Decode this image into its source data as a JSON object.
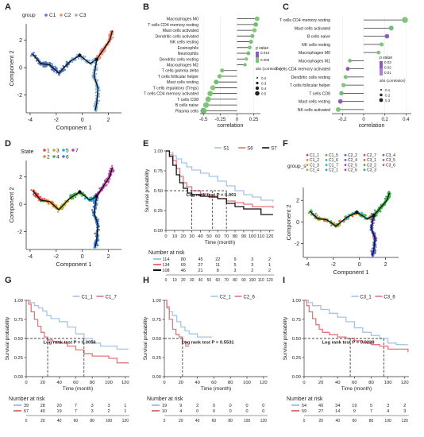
{
  "panels": [
    "A",
    "B",
    "C",
    "D",
    "E",
    "F",
    "G",
    "H",
    "I"
  ],
  "chart_data": [
    {
      "panel": "A",
      "type": "scatter",
      "legend_title": "group",
      "legend": [
        "C1",
        "C2",
        "C3"
      ],
      "colors": [
        "#4e79c4",
        "#f08a70",
        "#7fb3e0"
      ],
      "xlabel": "Component 1",
      "ylabel": "Component 2",
      "xticks": [
        -4,
        -2,
        0,
        2
      ],
      "yticks": [
        -2,
        0,
        2
      ],
      "xlim": [
        -4.3,
        3
      ],
      "ylim": [
        -3.3,
        3.2
      ]
    },
    {
      "panel": "B",
      "type": "lollipop",
      "xlabel": "correlation",
      "xticks": [
        -0.5,
        -0.25,
        0,
        0.25
      ],
      "xlim": [
        -0.55,
        0.35
      ],
      "legend_p_title": "p value",
      "legend_p_values": [
        "0.010",
        "0.005"
      ],
      "legend_abs_title": "abs (correlation)",
      "legend_abs_values": [
        "0.2",
        "0.3",
        "0.4",
        "0.5"
      ],
      "categories": [
        "Macrophages M0",
        "T cells CD4 memory resting",
        "Mast cells activated",
        "Dendritic cells activated",
        "NK cells resting",
        "Eosinophils",
        "Neutrophils",
        "Dendritic cells resting",
        "Macrophages M2",
        "T cells gamma delta",
        "T cells follicular helper",
        "Mast cells resting",
        "T cells regulatory (Tregs)",
        "T cells CD4 memory activated",
        "T cells CD8",
        "B cells naive",
        "Plasma cells"
      ],
      "values": [
        0.3,
        0.28,
        0.26,
        0.23,
        0.21,
        0.19,
        0.17,
        0.14,
        0.12,
        -0.22,
        -0.26,
        -0.31,
        -0.36,
        -0.4,
        -0.43,
        -0.46,
        -0.5
      ]
    },
    {
      "panel": "C",
      "type": "lollipop",
      "xlabel": "correlation",
      "xticks": [
        -0.2,
        0,
        0.2,
        0.4
      ],
      "xlim": [
        -0.3,
        0.45
      ],
      "legend_p_title": "p value",
      "legend_p_values": [
        "0.03",
        "0.02",
        "0.01"
      ],
      "legend_abs_title": "abs (correlation)",
      "legend_abs_values": [
        "0.1",
        "0.2",
        "0.3"
      ],
      "categories": [
        "T cells CD4 memory resting",
        "Mast cells activated",
        "B cells naive",
        "NK cells resting",
        "Macrophages M0",
        "Macrophages M1",
        "T cells CD4 memory activated",
        "Dendritic cells resting",
        "T cells follicular helper",
        "T cells CD8",
        "Mast cells resting",
        "NK cells activated"
      ],
      "values": [
        0.39,
        0.26,
        0.22,
        0.17,
        0.14,
        -0.13,
        -0.15,
        -0.17,
        -0.19,
        -0.21,
        -0.22,
        -0.24
      ]
    },
    {
      "panel": "D",
      "type": "scatter",
      "legend_title": "State",
      "legend": [
        "1",
        "2",
        "3",
        "4",
        "5",
        "6",
        "7"
      ],
      "colors": [
        "#e84a3c",
        "#e08a2c",
        "#b8b020",
        "#43b04a",
        "#25b4c0",
        "#3b7fd9",
        "#c040b0"
      ],
      "xlabel": "Component 1",
      "ylabel": "Component 2",
      "xticks": [
        -4,
        -2,
        0,
        2
      ],
      "yticks": [
        -2,
        0,
        2
      ]
    },
    {
      "panel": "E",
      "type": "line",
      "series": [
        {
          "name": "S1"
        },
        {
          "name": "S6"
        },
        {
          "name": "S7"
        }
      ],
      "colors": [
        "#a7c4e2",
        "#e3757a",
        "#111111"
      ],
      "curves": [
        [
          [
            0,
            1
          ],
          [
            4,
            0.98
          ],
          [
            8,
            0.94
          ],
          [
            12,
            0.9
          ],
          [
            18,
            0.85
          ],
          [
            24,
            0.8
          ],
          [
            30,
            0.76
          ],
          [
            40,
            0.72
          ],
          [
            50,
            0.68
          ],
          [
            60,
            0.62
          ],
          [
            70,
            0.56
          ],
          [
            80,
            0.5
          ],
          [
            90,
            0.45
          ],
          [
            100,
            0.42
          ],
          [
            110,
            0.38
          ],
          [
            124,
            0.36
          ]
        ],
        [
          [
            0,
            1
          ],
          [
            4,
            0.95
          ],
          [
            8,
            0.88
          ],
          [
            12,
            0.78
          ],
          [
            16,
            0.68
          ],
          [
            20,
            0.6
          ],
          [
            24,
            0.55
          ],
          [
            30,
            0.5
          ],
          [
            40,
            0.46
          ],
          [
            50,
            0.43
          ],
          [
            60,
            0.4
          ],
          [
            70,
            0.37
          ],
          [
            80,
            0.35
          ],
          [
            90,
            0.33
          ],
          [
            100,
            0.3
          ],
          [
            124,
            0.28
          ]
        ],
        [
          [
            0,
            1
          ],
          [
            4,
            0.93
          ],
          [
            8,
            0.82
          ],
          [
            12,
            0.7
          ],
          [
            16,
            0.6
          ],
          [
            20,
            0.53
          ],
          [
            25,
            0.47
          ],
          [
            30,
            0.45
          ],
          [
            40,
            0.43
          ],
          [
            50,
            0.42
          ],
          [
            60,
            0.4
          ],
          [
            70,
            0.34
          ],
          [
            80,
            0.3
          ],
          [
            90,
            0.27
          ],
          [
            100,
            0.27
          ],
          [
            110,
            0.2
          ],
          [
            124,
            0.2
          ]
        ]
      ],
      "dashed_h": 0.5,
      "dashed_v": [
        30,
        54,
        70
      ],
      "annotation": "Log rank test P < 0.001",
      "xlabel": "Time (month)",
      "ylabel": "Survival probability",
      "xticks": [
        0,
        10,
        20,
        30,
        40,
        50,
        60,
        70,
        80,
        90,
        100,
        110,
        120
      ],
      "yticks": [
        0,
        0.25,
        0.5,
        0.75,
        1
      ],
      "ytick_labels": [
        "0.00",
        "0.25",
        "0.50",
        "0.75",
        "1.00"
      ],
      "risk_title": "Number at risk",
      "risk": [
        [
          114,
          80,
          45,
          22,
          9,
          3,
          2
        ],
        [
          134,
          69,
          27,
          11,
          5,
          3,
          1
        ],
        [
          108,
          46,
          21,
          8,
          3,
          2,
          2
        ]
      ],
      "risk_x": [
        0,
        20,
        40,
        60,
        80,
        100,
        120
      ]
    },
    {
      "panel": "F",
      "type": "scatter",
      "legend_title": "group_s",
      "legend": [
        "C1_1",
        "C1_2",
        "C1_3",
        "C1_4",
        "C1_5",
        "C1_6",
        "C1_7",
        "C2_1",
        "C2_2",
        "C2_4",
        "C2_5",
        "C2_6",
        "C2_7",
        "C3_1",
        "C3_2",
        "C3_3",
        "C3_4",
        "C3_5",
        "C3_6"
      ],
      "xlabel": "Component 1",
      "ylabel": "Component 2",
      "xticks": [
        -4,
        -2,
        0,
        2
      ],
      "yticks": [
        -2,
        0,
        2
      ]
    },
    {
      "panel": "G",
      "type": "line",
      "series": [
        {
          "name": "C1_1"
        },
        {
          "name": "C1_7"
        }
      ],
      "colors": [
        "#a7c4e2",
        "#e3757a"
      ],
      "curves": [
        [
          [
            0,
            1
          ],
          [
            5,
            0.97
          ],
          [
            10,
            0.93
          ],
          [
            15,
            0.9
          ],
          [
            20,
            0.86
          ],
          [
            25,
            0.8
          ],
          [
            30,
            0.76
          ],
          [
            40,
            0.72
          ],
          [
            50,
            0.65
          ],
          [
            60,
            0.56
          ],
          [
            70,
            0.5
          ],
          [
            80,
            0.44
          ],
          [
            90,
            0.4
          ],
          [
            100,
            0.4
          ],
          [
            110,
            0.36
          ],
          [
            124,
            0.36
          ]
        ],
        [
          [
            0,
            1
          ],
          [
            3,
            0.95
          ],
          [
            6,
            0.85
          ],
          [
            10,
            0.75
          ],
          [
            14,
            0.66
          ],
          [
            18,
            0.58
          ],
          [
            22,
            0.52
          ],
          [
            26,
            0.48
          ],
          [
            32,
            0.46
          ],
          [
            40,
            0.44
          ],
          [
            50,
            0.4
          ],
          [
            60,
            0.35
          ],
          [
            70,
            0.3
          ],
          [
            80,
            0.27
          ],
          [
            100,
            0.24
          ],
          [
            110,
            0.18
          ],
          [
            124,
            0.18
          ]
        ]
      ],
      "dashed_h": 0.5,
      "dashed_v": [
        26,
        70
      ],
      "annotation": "Log rank test P = 0.0056",
      "xlabel": "Time (month)",
      "ylabel": "Survival probability",
      "xticks": [
        0,
        20,
        40,
        60,
        80,
        100,
        120
      ],
      "yticks": [
        0,
        0.25,
        0.5,
        0.75,
        1
      ],
      "ytick_labels": [
        "0.00",
        "0.25",
        "0.50",
        "0.75",
        "1.00"
      ],
      "risk_title": "Number at risk",
      "risk": [
        [
          39,
          28,
          20,
          7,
          3,
          3,
          1
        ],
        [
          67,
          40,
          19,
          7,
          3,
          2,
          1
        ]
      ],
      "risk_x": [
        0,
        20,
        40,
        60,
        80,
        100,
        120
      ]
    },
    {
      "panel": "H",
      "type": "line",
      "series": [
        {
          "name": "C2_1"
        },
        {
          "name": "C2_6"
        }
      ],
      "colors": [
        "#a7c4e2",
        "#e3757a"
      ],
      "curves": [
        [
          [
            0,
            1
          ],
          [
            3,
            0.92
          ],
          [
            6,
            0.85
          ],
          [
            10,
            0.8
          ],
          [
            15,
            0.72
          ],
          [
            20,
            0.65
          ],
          [
            25,
            0.6
          ],
          [
            30,
            0.56
          ],
          [
            40,
            0.52
          ],
          [
            50,
            0.52
          ],
          [
            58,
            0.52
          ]
        ],
        [
          [
            0,
            1
          ],
          [
            3,
            0.9
          ],
          [
            6,
            0.75
          ],
          [
            10,
            0.62
          ],
          [
            14,
            0.55
          ],
          [
            18,
            0.52
          ],
          [
            22,
            0.46
          ],
          [
            26,
            0.4
          ],
          [
            30,
            0.4
          ]
        ]
      ],
      "dashed_h": 0.5,
      "dashed_v": [
        22
      ],
      "annotation": "Log rank test P = 0.5531",
      "xlabel": "Time (month)",
      "ylabel": "Survival probability",
      "xticks": [
        0,
        20,
        40,
        60,
        80,
        100,
        120
      ],
      "yticks": [
        0,
        0.25,
        0.5,
        0.75,
        1
      ],
      "ytick_labels": [
        "0.00",
        "0.25",
        "0.50",
        "0.75",
        "1.00"
      ],
      "risk_title": "Number at risk",
      "risk": [
        [
          19,
          9,
          2,
          0,
          0,
          0,
          0
        ],
        [
          10,
          4,
          0,
          0,
          0,
          0,
          0
        ]
      ],
      "risk_x": [
        0,
        20,
        40,
        60,
        80,
        100,
        120
      ]
    },
    {
      "panel": "I",
      "type": "line",
      "series": [
        {
          "name": "C3_1"
        },
        {
          "name": "C3_6"
        }
      ],
      "colors": [
        "#a7c4e2",
        "#e3757a"
      ],
      "curves": [
        [
          [
            0,
            1
          ],
          [
            5,
            0.97
          ],
          [
            10,
            0.93
          ],
          [
            20,
            0.88
          ],
          [
            30,
            0.83
          ],
          [
            40,
            0.78
          ],
          [
            50,
            0.72
          ],
          [
            60,
            0.64
          ],
          [
            70,
            0.58
          ],
          [
            80,
            0.54
          ],
          [
            90,
            0.5
          ],
          [
            100,
            0.44
          ],
          [
            110,
            0.42
          ],
          [
            124,
            0.42
          ]
        ],
        [
          [
            0,
            1
          ],
          [
            3,
            0.93
          ],
          [
            6,
            0.85
          ],
          [
            10,
            0.76
          ],
          [
            14,
            0.68
          ],
          [
            18,
            0.62
          ],
          [
            22,
            0.58
          ],
          [
            30,
            0.55
          ],
          [
            40,
            0.52
          ],
          [
            50,
            0.5
          ],
          [
            60,
            0.47
          ],
          [
            70,
            0.45
          ],
          [
            80,
            0.42
          ],
          [
            90,
            0.4
          ],
          [
            100,
            0.36
          ],
          [
            124,
            0.32
          ]
        ]
      ],
      "dashed_h": 0.5,
      "dashed_v": [
        55,
        95
      ],
      "annotation": "Log rank test P = 0.0228",
      "xlabel": "Time (month)",
      "ylabel": "Survival probability",
      "xticks": [
        0,
        20,
        40,
        60,
        80,
        100,
        120
      ],
      "yticks": [
        0,
        0.25,
        0.5,
        0.75,
        1
      ],
      "ytick_labels": [
        "0.00",
        "0.25",
        "0.50",
        "0.75",
        "1.00"
      ],
      "risk_title": "Number at risk",
      "risk": [
        [
          54,
          40,
          34,
          19,
          5,
          3,
          2
        ],
        [
          59,
          27,
          14,
          9,
          7,
          4,
          3
        ]
      ],
      "risk_x": [
        0,
        20,
        40,
        60,
        80,
        100,
        120
      ]
    }
  ]
}
